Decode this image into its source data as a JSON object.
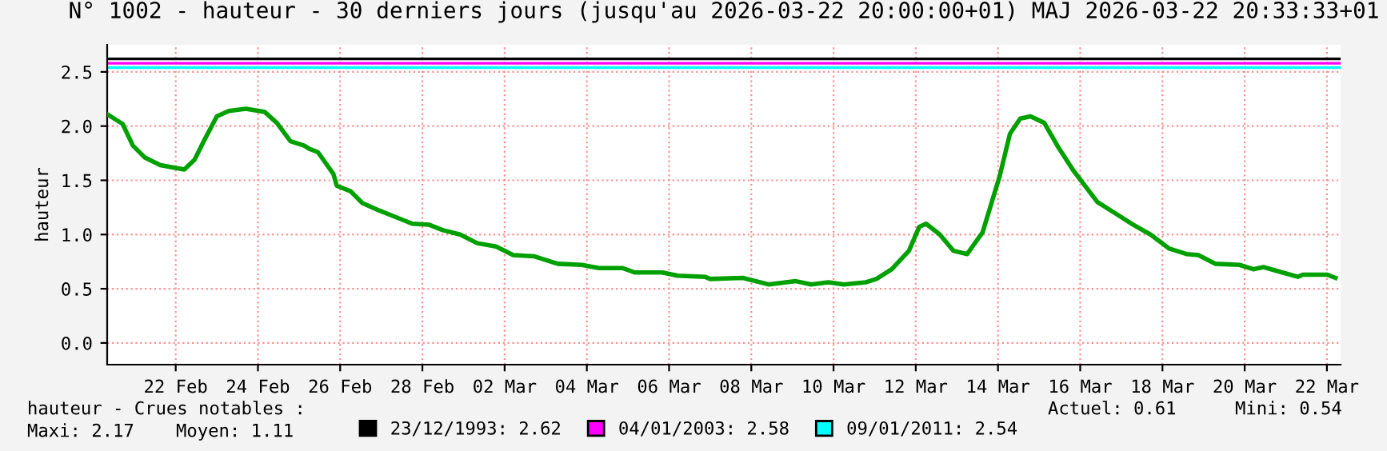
{
  "chart_data": {
    "type": "line",
    "title": "N° 1002 - hauteur - 30 derniers jours (jusqu'au 2026-03-22 20:00:00+01) MAJ 2026-03-22 20:33:33+01",
    "ylabel": "hauteur",
    "x": [
      "2026-02-20T20:00",
      "2026-02-21T05:00",
      "2026-02-21T11:00",
      "2026-02-21T18:00",
      "2026-02-22T03:00",
      "2026-02-22T17:00",
      "2026-02-22T23:00",
      "2026-02-23T05:00",
      "2026-02-23T12:00",
      "2026-02-23T19:00",
      "2026-02-24T05:00",
      "2026-02-24T16:00",
      "2026-02-24T23:00",
      "2026-02-25T07:00",
      "2026-02-25T15:00",
      "2026-02-25T18:00",
      "2026-02-25T23:00",
      "2026-02-26T08:00",
      "2026-02-26T10:00",
      "2026-02-26T18:00",
      "2026-02-27T01:00",
      "2026-02-27T11:00",
      "2026-02-27T19:00",
      "2026-02-28T06:00",
      "2026-02-28T16:00",
      "2026-03-01T00:00",
      "2026-03-01T10:00",
      "2026-03-01T20:00",
      "2026-03-02T07:00",
      "2026-03-02T17:00",
      "2026-03-03T05:00",
      "2026-03-03T19:00",
      "2026-03-04T09:00",
      "2026-03-04T19:00",
      "2026-03-05T09:00",
      "2026-03-05T16:00",
      "2026-03-06T08:00",
      "2026-03-06T17:00",
      "2026-03-07T09:00",
      "2026-03-07T12:00",
      "2026-03-08T07:00",
      "2026-03-08T22:00",
      "2026-03-09T14:00",
      "2026-03-09T23:00",
      "2026-03-10T09:00",
      "2026-03-10T18:00",
      "2026-03-11T07:00",
      "2026-03-11T13:00",
      "2026-03-11T22:00",
      "2026-03-12T08:00",
      "2026-03-12T14:00",
      "2026-03-12T18:00",
      "2026-03-13T02:00",
      "2026-03-13T10:00",
      "2026-03-13T18:00",
      "2026-03-14T03:00",
      "2026-03-14T13:00",
      "2026-03-14T19:00",
      "2026-03-15T01:00",
      "2026-03-15T07:00",
      "2026-03-15T15:00",
      "2026-03-15T23:00",
      "2026-03-16T08:00",
      "2026-03-16T22:00",
      "2026-03-17T09:00",
      "2026-03-17T19:00",
      "2026-03-18T05:00",
      "2026-03-18T16:00",
      "2026-03-19T02:00",
      "2026-03-19T09:00",
      "2026-03-19T19:00",
      "2026-03-20T09:00",
      "2026-03-20T17:00",
      "2026-03-20T23:00",
      "2026-03-21T10:00",
      "2026-03-21T19:00",
      "2026-03-21T22:00",
      "2026-03-22T12:00",
      "2026-03-22T17:00"
    ],
    "series": [
      {
        "color": "#00a000",
        "values": [
          2.11,
          2.02,
          1.82,
          1.71,
          1.64,
          1.6,
          1.69,
          1.88,
          2.09,
          2.14,
          2.16,
          2.13,
          2.03,
          1.86,
          1.82,
          1.79,
          1.76,
          1.56,
          1.45,
          1.4,
          1.29,
          1.22,
          1.17,
          1.1,
          1.09,
          1.04,
          1.0,
          0.92,
          0.89,
          0.81,
          0.8,
          0.73,
          0.72,
          0.69,
          0.69,
          0.65,
          0.65,
          0.62,
          0.61,
          0.59,
          0.6,
          0.54,
          0.57,
          0.54,
          0.56,
          0.54,
          0.56,
          0.59,
          0.68,
          0.85,
          1.07,
          1.1,
          1.0,
          0.85,
          0.82,
          1.02,
          1.54,
          1.93,
          2.07,
          2.09,
          2.03,
          1.81,
          1.59,
          1.3,
          1.19,
          1.09,
          1.0,
          0.87,
          0.82,
          0.81,
          0.73,
          0.72,
          0.68,
          0.7,
          0.65,
          0.61,
          0.63,
          0.63,
          0.6
        ]
      }
    ],
    "xlim": [
      "2026-02-20T20:00",
      "2026-03-22T20:00"
    ],
    "xticks": [
      {
        "value": "2026-02-22T12:00",
        "label": "22 Feb"
      },
      {
        "value": "2026-02-24T12:00",
        "label": "24 Feb"
      },
      {
        "value": "2026-02-26T12:00",
        "label": "26 Feb"
      },
      {
        "value": "2026-02-28T12:00",
        "label": "28 Feb"
      },
      {
        "value": "2026-03-02T12:00",
        "label": "02 Mar"
      },
      {
        "value": "2026-03-04T12:00",
        "label": "04 Mar"
      },
      {
        "value": "2026-03-06T12:00",
        "label": "06 Mar"
      },
      {
        "value": "2026-03-08T12:00",
        "label": "08 Mar"
      },
      {
        "value": "2026-03-10T12:00",
        "label": "10 Mar"
      },
      {
        "value": "2026-03-12T12:00",
        "label": "12 Mar"
      },
      {
        "value": "2026-03-14T12:00",
        "label": "14 Mar"
      },
      {
        "value": "2026-03-16T12:00",
        "label": "16 Mar"
      },
      {
        "value": "2026-03-18T12:00",
        "label": "18 Mar"
      },
      {
        "value": "2026-03-20T12:00",
        "label": "20 Mar"
      },
      {
        "value": "2026-03-22T12:00",
        "label": "22 Mar"
      }
    ],
    "ylim": [
      -0.2,
      2.75
    ],
    "yticks": [
      {
        "value": 0,
        "label": "0.0"
      },
      {
        "value": 0.5,
        "label": "0.5"
      },
      {
        "value": 1,
        "label": "1.0"
      },
      {
        "value": 1.5,
        "label": "1.5"
      },
      {
        "value": 2,
        "label": "2.0"
      },
      {
        "value": 2.5,
        "label": "2.5"
      }
    ],
    "ref_lines": [
      {
        "axis": "y",
        "value": 2.62,
        "label": "23/12/1993: 2.62",
        "color": "#000000"
      },
      {
        "axis": "y",
        "value": 2.58,
        "label": "04/01/2003: 2.58",
        "color": "#ff00ff"
      },
      {
        "axis": "y",
        "value": 2.54,
        "label": "09/01/2011: 2.54",
        "color": "#00ffff"
      }
    ],
    "annotations": [
      "hauteur - Crues notables :",
      "Actuel: 0.61",
      "Mini: 0.54",
      "Maxi: 2.17",
      "Moyen: 1.11"
    ],
    "grid": true,
    "legend": "bottom"
  }
}
